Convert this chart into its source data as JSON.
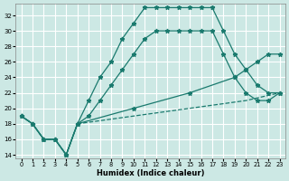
{
  "xlabel": "Humidex (Indice chaleur)",
  "bg_color": "#cce8e4",
  "line_color": "#1a7a6e",
  "grid_color": "#ffffff",
  "xlim": [
    -0.5,
    23.5
  ],
  "ylim": [
    13.5,
    33.5
  ],
  "yticks": [
    14,
    16,
    18,
    20,
    22,
    24,
    26,
    28,
    30,
    32
  ],
  "xticks": [
    0,
    1,
    2,
    3,
    4,
    5,
    6,
    7,
    8,
    9,
    10,
    11,
    12,
    13,
    14,
    15,
    16,
    17,
    18,
    19,
    20,
    21,
    22,
    23
  ],
  "lines": [
    {
      "x": [
        0,
        1,
        2,
        3,
        4,
        5,
        6,
        7,
        8,
        9,
        10,
        11,
        12,
        13,
        14,
        15,
        16,
        17,
        18,
        19,
        20,
        21,
        22,
        23
      ],
      "y": [
        19,
        18,
        16,
        16,
        14,
        18,
        21,
        24,
        26,
        29,
        31,
        33,
        33,
        33,
        33,
        33,
        33,
        33,
        30,
        27,
        25,
        23,
        22,
        22
      ],
      "linestyle": "-",
      "marker": true
    },
    {
      "x": [
        0,
        1,
        2,
        3,
        4,
        5,
        6,
        7,
        8,
        9,
        10,
        11,
        12,
        13,
        14,
        15,
        16,
        17,
        18,
        19,
        20,
        21,
        22,
        23
      ],
      "y": [
        19,
        18,
        16,
        16,
        14,
        18,
        19,
        21,
        23,
        25,
        27,
        29,
        30,
        30,
        30,
        30,
        30,
        30,
        27,
        24,
        22,
        21,
        21,
        22
      ],
      "linestyle": "-",
      "marker": true
    },
    {
      "x": [
        0,
        1,
        2,
        3,
        4,
        5,
        10,
        15,
        19,
        20,
        21,
        22,
        23
      ],
      "y": [
        19,
        18,
        16,
        16,
        14,
        18,
        20,
        22,
        24,
        25,
        26,
        27,
        27
      ],
      "linestyle": "-",
      "marker": true
    },
    {
      "x": [
        0,
        1,
        2,
        3,
        4,
        5,
        10,
        15,
        20,
        23
      ],
      "y": [
        19,
        18,
        16,
        16,
        14,
        18,
        19,
        20,
        21,
        22
      ],
      "linestyle": "--",
      "marker": false
    }
  ]
}
